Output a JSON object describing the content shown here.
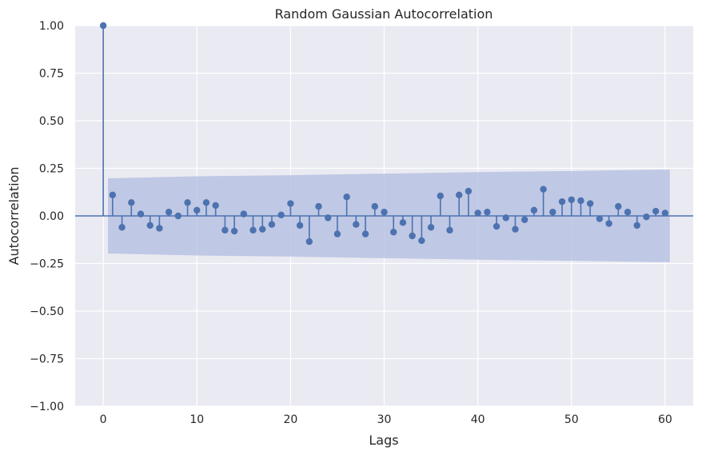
{
  "chart_data": {
    "type": "scatter",
    "subtype": "stem",
    "title": "Random Gaussian Autocorrelation",
    "xlabel": "Lags",
    "ylabel": "Autocorrelation",
    "xlim": [
      -3,
      63
    ],
    "ylim": [
      -1.0,
      1.0
    ],
    "x_ticks": [
      0,
      10,
      20,
      30,
      40,
      50,
      60
    ],
    "y_ticks": [
      -1.0,
      -0.75,
      -0.5,
      -0.25,
      0.0,
      0.25,
      0.5,
      0.75,
      1.0
    ],
    "y_tick_labels": [
      "−1.00",
      "−0.75",
      "−0.50",
      "−0.25",
      "0.00",
      "0.25",
      "0.50",
      "0.75",
      "1.00"
    ],
    "grid": true,
    "legend": "none",
    "colors": {
      "background": "#eaeaf2",
      "grid": "#ffffff",
      "marker": "#4c72b0",
      "band": "#b0bcdf",
      "text": "#262626"
    },
    "lags": [
      0,
      1,
      2,
      3,
      4,
      5,
      6,
      7,
      8,
      9,
      10,
      11,
      12,
      13,
      14,
      15,
      16,
      17,
      18,
      19,
      20,
      21,
      22,
      23,
      24,
      25,
      26,
      27,
      28,
      29,
      30,
      31,
      32,
      33,
      34,
      35,
      36,
      37,
      38,
      39,
      40,
      41,
      42,
      43,
      44,
      45,
      46,
      47,
      48,
      49,
      50,
      51,
      52,
      53,
      54,
      55,
      56,
      57,
      58,
      59,
      60
    ],
    "values": [
      1.0,
      0.11,
      -0.06,
      0.07,
      0.01,
      -0.05,
      -0.065,
      0.02,
      0.0,
      0.07,
      0.03,
      0.07,
      0.055,
      -0.075,
      -0.08,
      0.01,
      -0.075,
      -0.07,
      -0.045,
      0.005,
      0.065,
      -0.05,
      -0.135,
      0.05,
      -0.01,
      -0.095,
      0.1,
      -0.045,
      -0.095,
      0.05,
      0.02,
      -0.085,
      -0.035,
      -0.105,
      -0.13,
      -0.06,
      0.105,
      -0.075,
      0.11,
      0.13,
      0.015,
      0.02,
      -0.055,
      -0.01,
      -0.07,
      -0.02,
      0.03,
      0.14,
      0.02,
      0.075,
      0.085,
      0.08,
      0.065,
      -0.015,
      -0.04,
      0.05,
      0.02,
      -0.05,
      -0.005,
      0.025,
      0.015
    ],
    "confidence_band": {
      "lags": [
        1,
        10,
        20,
        30,
        40,
        50,
        60
      ],
      "upper": [
        0.198,
        0.208,
        0.214,
        0.222,
        0.23,
        0.236,
        0.243
      ]
    }
  }
}
